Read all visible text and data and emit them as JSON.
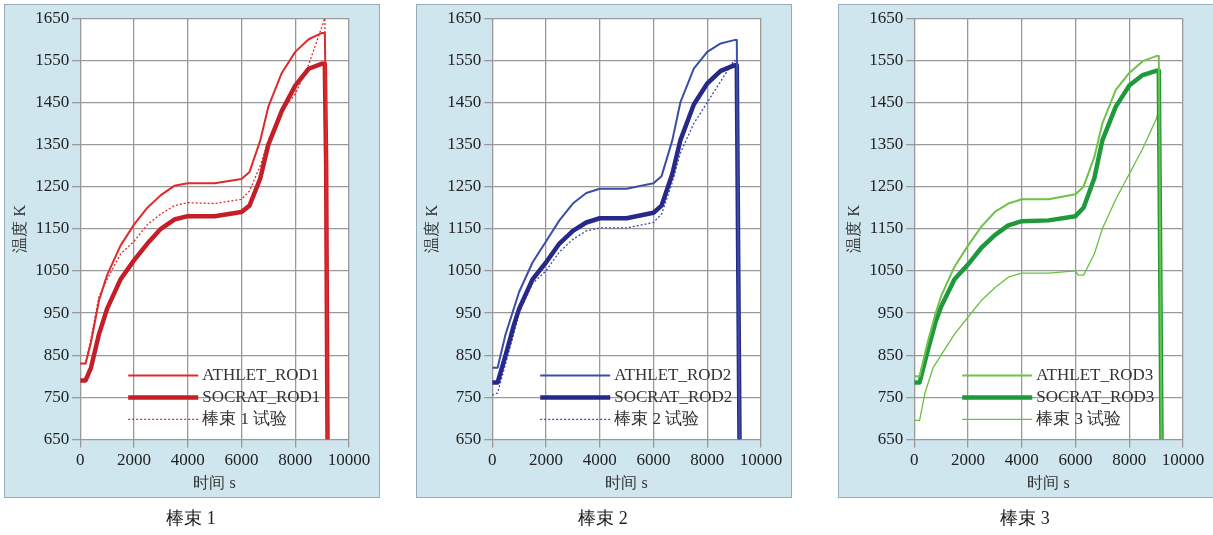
{
  "chart_data": [
    {
      "type": "line",
      "title": "棒束 1",
      "xlabel": "时间 s",
      "ylabel": "温度 K",
      "xlim": [
        0,
        10000
      ],
      "xticks": [
        0,
        2000,
        4000,
        6000,
        8000,
        10000
      ],
      "ylim": [
        650,
        1650
      ],
      "yticks": [
        650,
        750,
        850,
        950,
        1050,
        1150,
        1250,
        1350,
        1450,
        1550,
        1650
      ],
      "grid": true,
      "legend": "bottom right",
      "marker": "none",
      "series": [
        {
          "name": "ATHLET_ROD1",
          "color": "#e02a2a",
          "x": [
            0,
            200,
            400,
            700,
            1000,
            1500,
            2000,
            2500,
            3000,
            3500,
            4000,
            5000,
            6000,
            6300,
            6700,
            7000,
            7500,
            8000,
            8500,
            9000,
            9100,
            9150,
            9200
          ],
          "values": [
            830,
            830,
            880,
            980,
            1040,
            1110,
            1160,
            1200,
            1230,
            1252,
            1258,
            1258,
            1268,
            1285,
            1360,
            1440,
            1520,
            1570,
            1600,
            1615,
            1615,
            1400,
            650
          ]
        },
        {
          "name": "SOCRAT_ROD1",
          "color": "#c41e28",
          "x": [
            0,
            200,
            400,
            700,
            1000,
            1500,
            2000,
            2500,
            3000,
            3500,
            4000,
            5000,
            6000,
            6300,
            6700,
            7000,
            7500,
            8000,
            8500,
            9000,
            9100,
            9150,
            9200
          ],
          "values": [
            790,
            790,
            820,
            900,
            960,
            1030,
            1075,
            1115,
            1150,
            1172,
            1180,
            1180,
            1190,
            1205,
            1270,
            1350,
            1430,
            1490,
            1530,
            1542,
            1542,
            1300,
            650
          ]
        },
        {
          "name": "棒束 1 试验",
          "color": "#e02a2a",
          "line_style": "dotted",
          "x": [
            0,
            200,
            400,
            700,
            1000,
            1500,
            2000,
            2500,
            3000,
            3500,
            4000,
            5000,
            6000,
            6300,
            6700,
            7000,
            7500,
            8000,
            8500,
            9100,
            9150,
            9200
          ],
          "values": [
            830,
            830,
            890,
            990,
            1030,
            1090,
            1120,
            1160,
            1185,
            1205,
            1212,
            1210,
            1220,
            1240,
            1300,
            1360,
            1430,
            1470,
            1540,
            1650,
            1400,
            650
          ]
        }
      ]
    },
    {
      "type": "line",
      "title": "棒束 2",
      "xlabel": "时间 s",
      "ylabel": "温度 K",
      "xlim": [
        0,
        10000
      ],
      "xticks": [
        0,
        2000,
        4000,
        6000,
        8000,
        10000
      ],
      "ylim": [
        650,
        1650
      ],
      "yticks": [
        650,
        750,
        850,
        950,
        1050,
        1150,
        1250,
        1350,
        1450,
        1550,
        1650
      ],
      "grid": true,
      "legend": "bottom right",
      "marker": "none",
      "series": [
        {
          "name": "ATHLET_ROD2",
          "color": "#3a4ea6",
          "x": [
            0,
            200,
            500,
            800,
            1000,
            1500,
            2000,
            2500,
            3000,
            3500,
            4000,
            5000,
            6000,
            6300,
            6700,
            7000,
            7500,
            8000,
            8500,
            9000,
            9100,
            9200
          ],
          "values": [
            820,
            820,
            900,
            960,
            1000,
            1070,
            1120,
            1170,
            1210,
            1235,
            1245,
            1245,
            1258,
            1275,
            1360,
            1450,
            1530,
            1570,
            1590,
            1598,
            1598,
            650
          ]
        },
        {
          "name": "SOCRAT_ROD2",
          "color": "#26288a",
          "x": [
            0,
            200,
            500,
            800,
            1000,
            1500,
            2000,
            2500,
            3000,
            3500,
            4000,
            5000,
            6000,
            6300,
            6700,
            7000,
            7500,
            8000,
            8500,
            9000,
            9100,
            9200
          ],
          "values": [
            785,
            785,
            850,
            920,
            960,
            1030,
            1070,
            1115,
            1145,
            1165,
            1175,
            1175,
            1188,
            1205,
            1280,
            1360,
            1445,
            1495,
            1525,
            1538,
            1538,
            650
          ]
        },
        {
          "name": "棒束 2 试验",
          "color": "#3a4ea6",
          "line_style": "dotted",
          "x": [
            0,
            200,
            500,
            800,
            1000,
            1500,
            2000,
            2500,
            3000,
            3500,
            4000,
            5000,
            6000,
            6300,
            6700,
            7000,
            7500,
            8000,
            8500,
            9000,
            9100,
            9200
          ],
          "values": [
            755,
            760,
            830,
            900,
            950,
            1020,
            1050,
            1095,
            1125,
            1145,
            1152,
            1152,
            1165,
            1185,
            1260,
            1330,
            1400,
            1450,
            1500,
            1550,
            1545,
            650
          ]
        }
      ]
    },
    {
      "type": "line",
      "title": "棒束 3",
      "xlabel": "时间 s",
      "ylabel": "温度 K",
      "xlim": [
        0,
        10000
      ],
      "xticks": [
        0,
        2000,
        4000,
        6000,
        8000,
        10000
      ],
      "ylim": [
        650,
        1650
      ],
      "yticks": [
        650,
        750,
        850,
        950,
        1050,
        1150,
        1250,
        1350,
        1450,
        1550,
        1650
      ],
      "grid": true,
      "legend": "bottom right",
      "marker": "none",
      "series": [
        {
          "name": "ATHLET_ROD3",
          "color": "#6cc24a",
          "x": [
            0,
            200,
            500,
            800,
            1000,
            1500,
            2000,
            2500,
            3000,
            3500,
            4000,
            5000,
            6000,
            6300,
            6700,
            7000,
            7500,
            8000,
            8500,
            9000,
            9100,
            9200
          ],
          "values": [
            800,
            800,
            880,
            950,
            990,
            1060,
            1110,
            1155,
            1190,
            1210,
            1220,
            1220,
            1232,
            1250,
            1320,
            1400,
            1480,
            1520,
            1548,
            1560,
            1560,
            650
          ]
        },
        {
          "name": "SOCRAT_ROD3",
          "color": "#1e9a3c",
          "x": [
            0,
            200,
            500,
            800,
            1000,
            1500,
            2000,
            2500,
            3000,
            3500,
            4000,
            5000,
            6000,
            6300,
            6700,
            7000,
            7500,
            8000,
            8500,
            9000,
            9100,
            9200
          ],
          "values": [
            785,
            785,
            860,
            930,
            965,
            1030,
            1065,
            1105,
            1135,
            1158,
            1168,
            1170,
            1180,
            1200,
            1270,
            1360,
            1440,
            1490,
            1515,
            1525,
            1525,
            650
          ]
        },
        {
          "name": "棒束 3 试验",
          "color": "#66c23f",
          "line_style": "solid",
          "x": [
            0,
            200,
            400,
            700,
            1000,
            1500,
            2000,
            2500,
            3000,
            3500,
            4000,
            5000,
            6000,
            6100,
            6300,
            6700,
            7000,
            7500,
            8000,
            8500,
            9000,
            9100,
            9200
          ],
          "values": [
            695,
            695,
            760,
            820,
            850,
            900,
            940,
            980,
            1010,
            1035,
            1045,
            1045,
            1050,
            1040,
            1040,
            1090,
            1150,
            1220,
            1280,
            1340,
            1410,
            1430,
            650
          ]
        }
      ]
    }
  ]
}
